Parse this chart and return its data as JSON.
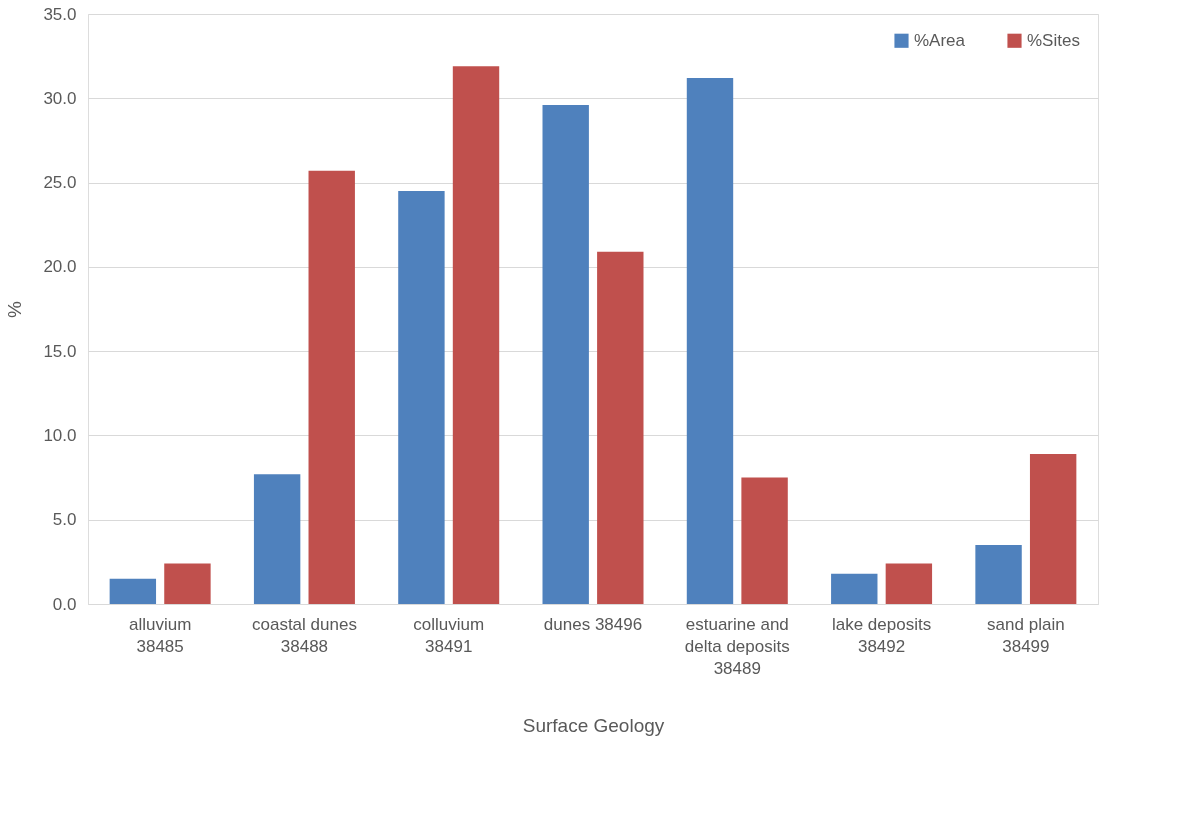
{
  "chart_data": {
    "type": "bar",
    "xlabel": "Surface Geology",
    "ylabel": "%",
    "categories": [
      "alluvium 38485",
      "coastal dunes 38488",
      "colluvium 38491",
      "dunes 38496",
      "estuarine and delta deposits 38489",
      "lake deposits 38492",
      "sand plain 38499"
    ],
    "series": [
      {
        "name": "%Area",
        "color": "#4f81bd",
        "values": [
          1.5,
          7.7,
          24.5,
          29.6,
          31.2,
          1.8,
          3.5
        ]
      },
      {
        "name": "%Sites",
        "color": "#c0504d",
        "values": [
          2.4,
          25.7,
          31.9,
          20.9,
          7.5,
          2.4,
          8.9
        ]
      }
    ],
    "ylim": [
      0,
      35
    ],
    "yticks": [
      {
        "value": 0,
        "label": "0.0"
      },
      {
        "value": 5,
        "label": "5.0"
      },
      {
        "value": 10,
        "label": "10.0"
      },
      {
        "value": 15,
        "label": "15.0"
      },
      {
        "value": 20,
        "label": "20.0"
      },
      {
        "value": 25,
        "label": "25.0"
      },
      {
        "value": 30,
        "label": "30.0"
      },
      {
        "value": 35,
        "label": "35.0"
      }
    ],
    "grid": "y",
    "legend": "top right"
  }
}
